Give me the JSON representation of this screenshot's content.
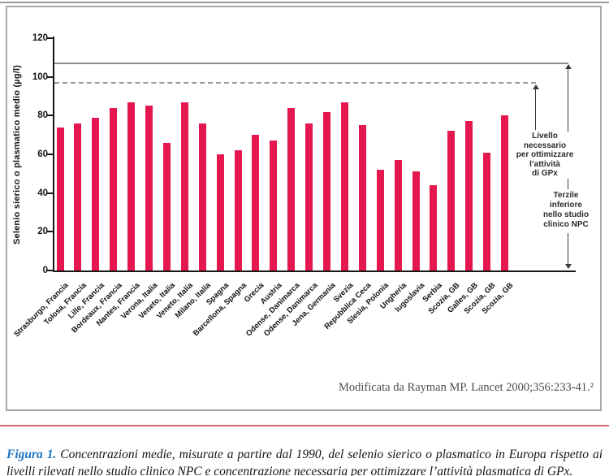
{
  "figure": {
    "source": "Modificata da Rayman MP. Lancet 2000;356:233-41.²",
    "caption_label": "Figura 1.",
    "caption_text": "Concentrazioni medie, misurate a partire dal 1990, del selenio sierico o plasmatico in Europa rispetto ai livelli rilevati nello studio clinico NPC e concentrazione necessaria per ottimizzare l’attività plasmatica di GPx."
  },
  "chart_data": {
    "type": "bar",
    "title": "",
    "xlabel": "",
    "ylabel": "Selenio sierico o plasmatico medio (µg/l)",
    "ylim": [
      0,
      120
    ],
    "yticks": [
      0,
      20,
      40,
      60,
      80,
      100,
      120
    ],
    "grid": false,
    "legend": false,
    "bar_color": "#e4174e",
    "categories": [
      "Strasburgo, Francia",
      "Tolosa, Francia",
      "Lille, Francia",
      "Bordeaux, Francia",
      "Nantes, Francia",
      "Verona, Italia",
      "Veneto, Italia",
      "Veneto, Italia",
      "Milano, Italia",
      "Spagna",
      "Barcellona, Spagna",
      "Grecia",
      "Austria",
      "Odense, Danimarca",
      "Odense, Danimarca",
      "Jena, Germania",
      "Svezia",
      "Repubblica Ceca",
      "Slesia, Polonia",
      "Ungheria",
      "Iugoslavia",
      "Serbia",
      "Scozia, GB",
      "Galles, GB",
      "Scozia, GB",
      "Scozia, GB"
    ],
    "values": [
      74,
      76,
      79,
      84,
      87,
      85,
      66,
      87,
      76,
      60,
      62,
      70,
      67,
      84,
      76,
      82,
      87,
      75,
      52,
      57,
      51,
      44,
      72,
      77,
      61,
      80
    ],
    "reference_lines": [
      {
        "value": 107,
        "style": "solid",
        "annotation_lines": [
          "Terzile",
          "inferiore",
          "nello studio",
          "clinico NPC"
        ]
      },
      {
        "value": 97,
        "style": "dashed",
        "annotation_lines": [
          "Livello",
          "necessario",
          "per ottimizzare",
          "l’attività",
          "di GPx"
        ]
      }
    ]
  }
}
